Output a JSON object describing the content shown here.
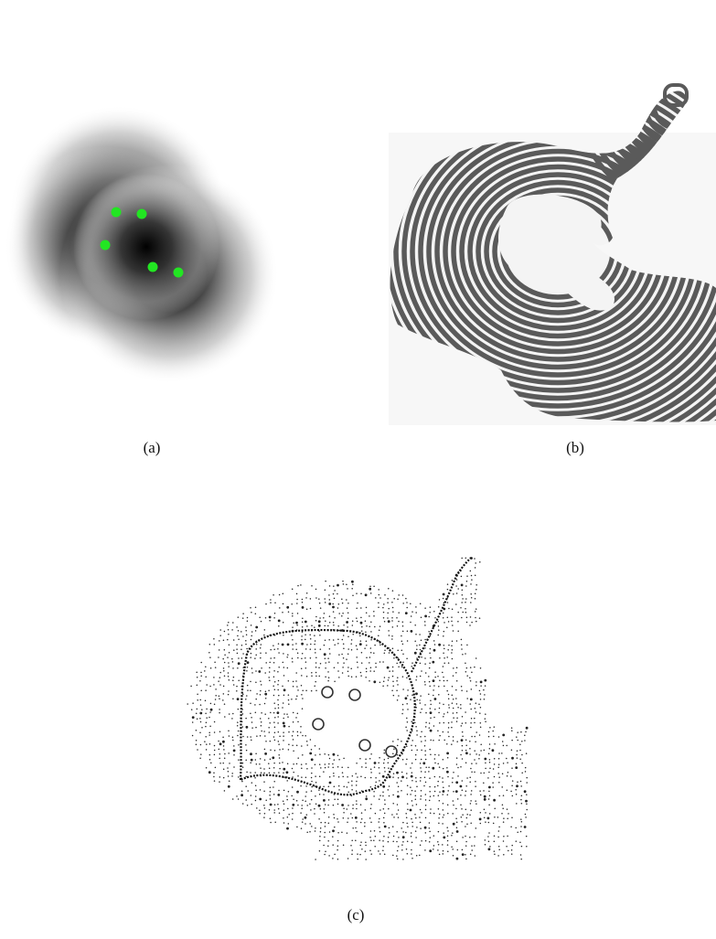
{
  "figure": {
    "panels": [
      {
        "id": "a",
        "caption": "(a)"
      },
      {
        "id": "b",
        "caption": "(b)"
      },
      {
        "id": "c",
        "caption": "(c)"
      }
    ],
    "colors": {
      "seed_green": "#22e622",
      "stripe_gray": "#5a5a5a",
      "dot_black": "#111111"
    },
    "panel_a": {
      "seed_count": 5
    },
    "panel_c": {
      "circle_count": 5
    }
  }
}
